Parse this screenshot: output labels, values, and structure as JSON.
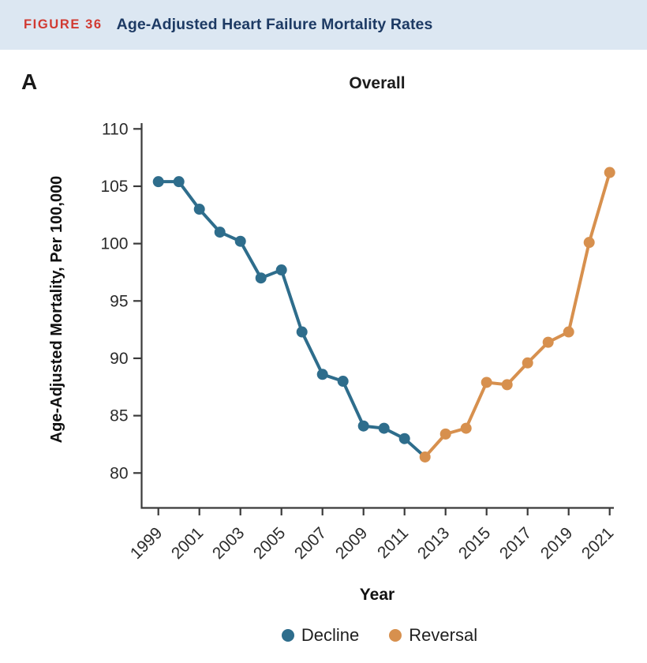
{
  "header": {
    "figure_label": "FIGURE 36",
    "title": "Age-Adjusted Heart Failure Mortality Rates"
  },
  "panel_label": "A",
  "colors": {
    "header_bg": "#dce7f2",
    "figure_label": "#d13a32",
    "header_title": "#1d3a64",
    "decline": "#2e6d8c",
    "reversal": "#d7904e"
  },
  "chart_data": {
    "type": "line",
    "title": "Overall",
    "xlabel": "Year",
    "ylabel": "Age-Adjusted Mortality, Per 100,000",
    "x": [
      1999,
      2000,
      2001,
      2002,
      2003,
      2004,
      2005,
      2006,
      2007,
      2008,
      2009,
      2010,
      2011,
      2012,
      2013,
      2014,
      2015,
      2016,
      2017,
      2018,
      2019,
      2020,
      2021
    ],
    "values": [
      105.4,
      105.4,
      103.0,
      101.0,
      100.2,
      97.0,
      97.7,
      92.3,
      88.6,
      88.0,
      84.1,
      83.9,
      83.0,
      81.4,
      83.4,
      83.9,
      87.9,
      87.7,
      89.6,
      91.4,
      92.3,
      100.1,
      106.2
    ],
    "segments": [
      {
        "name": "Decline",
        "color": "#2e6d8c",
        "line_from": 1999,
        "line_to": 2012,
        "markers_from": 1999,
        "markers_to": 2011
      },
      {
        "name": "Reversal",
        "color": "#d7904e",
        "line_from": 2012,
        "line_to": 2021,
        "markers_from": 2012,
        "markers_to": 2021
      }
    ],
    "ylim": [
      80,
      110
    ],
    "yticks": [
      110,
      105,
      100,
      95,
      90,
      85,
      80
    ],
    "xticks": [
      1999,
      2001,
      2003,
      2005,
      2007,
      2009,
      2011,
      2013,
      2015,
      2017,
      2019,
      2021
    ],
    "grid": false,
    "legend_position": "bottom",
    "legend": [
      {
        "label": "Decline",
        "color": "#2e6d8c"
      },
      {
        "label": "Reversal",
        "color": "#d7904e"
      }
    ],
    "axis_color": "#3a3a3a",
    "tick_text_color": "#2b2b2b"
  }
}
